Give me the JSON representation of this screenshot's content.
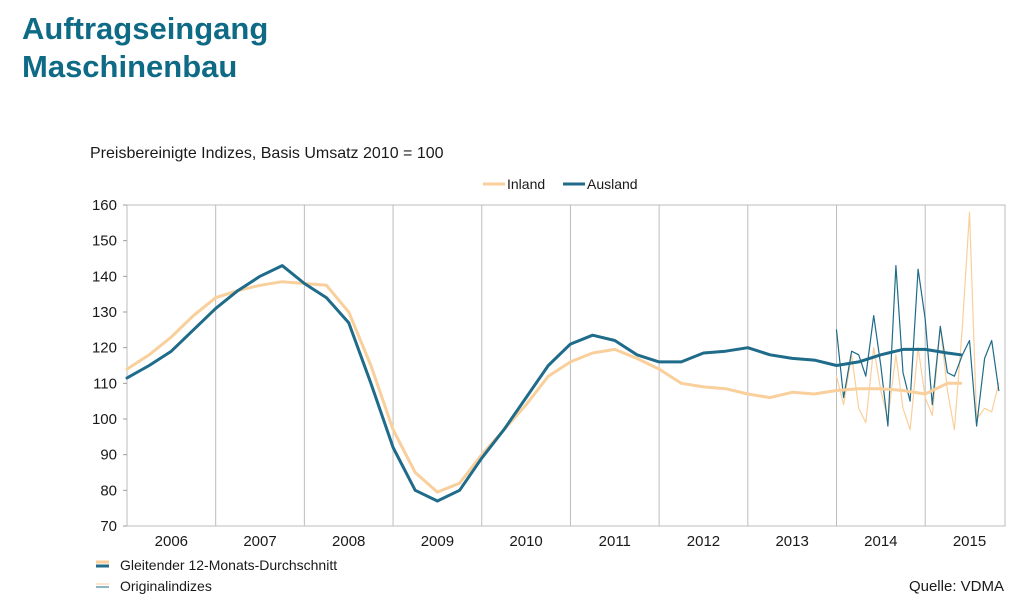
{
  "header": {
    "title_line1": "Auftragseingang",
    "title_line2": "Maschinenbau"
  },
  "source": "Quelle: VDMA",
  "colors": {
    "inland": "#f9cf9c",
    "ausland": "#1f6b8a",
    "title": "#0f6a86"
  },
  "chart_data": {
    "type": "line",
    "title": "",
    "subtitle": "Preisbereinigte Indizes, Basis Umsatz 2010 = 100",
    "ylim": [
      70,
      160
    ],
    "yticks": [
      70,
      80,
      90,
      100,
      110,
      120,
      130,
      140,
      150,
      160
    ],
    "xlim": [
      2005.5,
      2015.4
    ],
    "xtick_labels": [
      "2006",
      "2007",
      "2008",
      "2009",
      "2010",
      "2011",
      "2012",
      "2013",
      "2014",
      "2015"
    ],
    "grid": "vertical year gridlines",
    "legend": {
      "position": "top",
      "entries": [
        "Inland",
        "Ausland"
      ]
    },
    "notes": [
      "Gleitender 12-Monats-Durchschnitt",
      "Originalindizes"
    ],
    "series": [
      {
        "name": "Inland",
        "kind": "moving_average",
        "x": [
          2005.5,
          2005.75,
          2006.0,
          2006.25,
          2006.5,
          2006.75,
          2007.0,
          2007.25,
          2007.5,
          2007.75,
          2008.0,
          2008.25,
          2008.5,
          2008.75,
          2009.0,
          2009.25,
          2009.5,
          2009.75,
          2010.0,
          2010.25,
          2010.5,
          2010.75,
          2011.0,
          2011.25,
          2011.5,
          2011.75,
          2012.0,
          2012.25,
          2012.5,
          2012.75,
          2013.0,
          2013.25,
          2013.5,
          2013.75,
          2014.0,
          2014.25,
          2014.5,
          2014.75,
          2014.9
        ],
        "y": [
          114,
          118,
          123,
          129,
          134,
          136,
          137.5,
          138.5,
          138,
          137.5,
          130,
          115,
          97,
          85,
          79.5,
          82,
          90,
          97,
          104,
          112,
          116,
          118.5,
          119.5,
          117,
          114,
          110,
          109,
          108.5,
          107,
          106,
          107.5,
          107,
          108,
          108.5,
          108.5,
          108,
          107,
          110,
          110
        ]
      },
      {
        "name": "Ausland",
        "kind": "moving_average",
        "x": [
          2005.5,
          2005.75,
          2006.0,
          2006.25,
          2006.5,
          2006.75,
          2007.0,
          2007.25,
          2007.5,
          2007.75,
          2008.0,
          2008.25,
          2008.5,
          2008.75,
          2009.0,
          2009.25,
          2009.5,
          2009.75,
          2010.0,
          2010.25,
          2010.5,
          2010.75,
          2011.0,
          2011.25,
          2011.5,
          2011.75,
          2012.0,
          2012.25,
          2012.5,
          2012.75,
          2013.0,
          2013.25,
          2013.5,
          2013.75,
          2014.0,
          2014.25,
          2014.5,
          2014.75,
          2014.9
        ],
        "y": [
          111.5,
          115,
          119,
          125,
          131,
          136,
          140,
          143,
          138,
          134,
          127,
          110,
          92,
          80,
          77,
          80,
          89,
          97,
          106,
          115,
          121,
          123.5,
          122,
          118,
          116,
          116,
          118.5,
          119,
          120,
          118,
          117,
          116.5,
          115,
          116,
          118,
          119.5,
          119.5,
          118.5,
          118
        ]
      },
      {
        "name": "Inland",
        "kind": "original",
        "x": [
          2013.5,
          2013.58,
          2013.67,
          2013.75,
          2013.83,
          2013.92,
          2014.0,
          2014.08,
          2014.17,
          2014.25,
          2014.33,
          2014.42,
          2014.5,
          2014.58,
          2014.67,
          2014.75,
          2014.83,
          2014.92,
          2015.0,
          2015.08,
          2015.17,
          2015.25,
          2015.33
        ],
        "y": [
          112,
          104,
          118,
          103,
          99,
          120,
          108,
          100,
          118,
          103,
          97,
          120,
          106,
          101,
          126,
          108,
          97,
          126,
          158,
          100,
          103,
          102,
          110
        ]
      },
      {
        "name": "Ausland",
        "kind": "original",
        "x": [
          2013.5,
          2013.58,
          2013.67,
          2013.75,
          2013.83,
          2013.92,
          2014.0,
          2014.08,
          2014.17,
          2014.25,
          2014.33,
          2014.42,
          2014.5,
          2014.58,
          2014.67,
          2014.75,
          2014.83,
          2014.92,
          2015.0,
          2015.08,
          2015.17,
          2015.25,
          2015.33
        ],
        "y": [
          125,
          106,
          119,
          118,
          112,
          129,
          115,
          98,
          143,
          113,
          105,
          142,
          128,
          104,
          126,
          113,
          112,
          118,
          122,
          98,
          117,
          122,
          108
        ]
      }
    ]
  }
}
